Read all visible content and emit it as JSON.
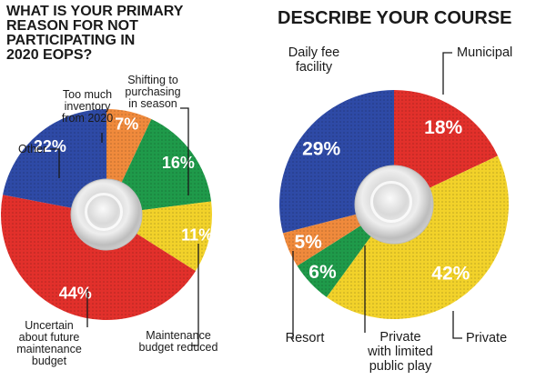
{
  "chart_data": [
    {
      "type": "pie",
      "title_lines": [
        "WHAT IS YOUR PRIMARY",
        "REASON FOR NOT",
        "PARTICIPATING IN",
        "2020 EOPS?"
      ],
      "slices": [
        {
          "label_lines": [
            "Too much",
            "inventory",
            "from 2020"
          ],
          "value": 7,
          "value_label": "7%",
          "color": "#f08a3c"
        },
        {
          "label_lines": [
            "Shifting to",
            "purchasing",
            "in season"
          ],
          "value": 16,
          "value_label": "16%",
          "color": "#1f9a4a"
        },
        {
          "label_lines": [
            "Maintenance",
            "budget reduced"
          ],
          "value": 11,
          "value_label": "11%",
          "color": "#f2d22a"
        },
        {
          "label_lines": [
            "Uncertain",
            "about future",
            "maintenance",
            "budget"
          ],
          "value": 44,
          "value_label": "44%",
          "color": "#e2302b"
        },
        {
          "label_lines": [
            "Other"
          ],
          "value": 22,
          "value_label": "22%",
          "color": "#2e4aa6"
        }
      ]
    },
    {
      "type": "pie",
      "title_lines": [
        "DESCRIBE YOUR COURSE"
      ],
      "slices": [
        {
          "label_lines": [
            "Municipal"
          ],
          "value": 18,
          "value_label": "18%",
          "color": "#e2302b"
        },
        {
          "label_lines": [
            "Private"
          ],
          "value": 42,
          "value_label": "42%",
          "color": "#f2d22a"
        },
        {
          "label_lines": [
            "Private",
            "with limited",
            "public play"
          ],
          "value": 6,
          "value_label": "6%",
          "color": "#1f9a4a"
        },
        {
          "label_lines": [
            "Resort"
          ],
          "value": 5,
          "value_label": "5%",
          "color": "#f08a3c"
        },
        {
          "label_lines": [
            "Daily fee",
            "facility"
          ],
          "value": 29,
          "value_label": "29%",
          "color": "#2e4aa6"
        }
      ]
    }
  ]
}
